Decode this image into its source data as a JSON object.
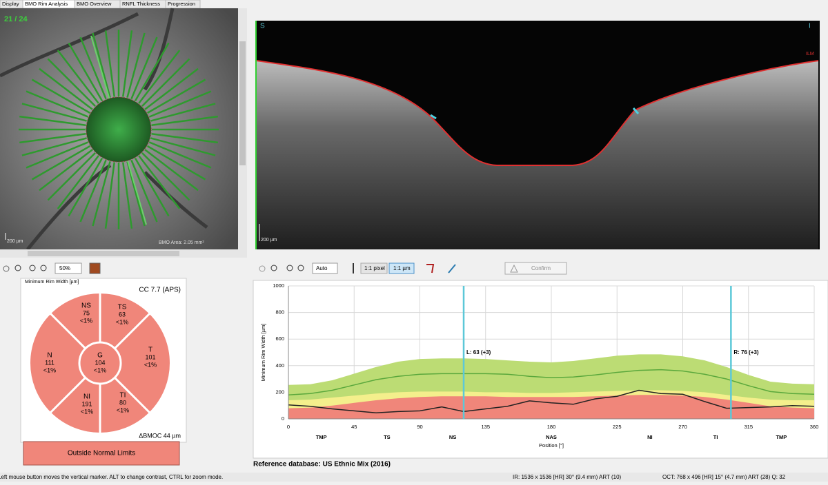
{
  "tabs": [
    "Display",
    "BMO Rim Analysis",
    "BMO Overview",
    "RNFL Thickness",
    "Progression"
  ],
  "fundus": {
    "scan": "21 / 24",
    "scale": "200 µm",
    "bmo_area": "BMO Area: 2.05 mm²"
  },
  "oct": {
    "left": "S",
    "right": "I",
    "layer": "ILM",
    "scale": "200 µm"
  },
  "toolbar_left": {
    "zoom": "50%"
  },
  "toolbar_right": {
    "mode": "Auto",
    "pixel": "1:1 pixel",
    "micron": "1:1 µm",
    "confirm": "Confirm"
  },
  "sector_panel": {
    "title": "Minimum Rim Width [µm]",
    "cc": "CC 7.7 (APS)",
    "sectors": [
      {
        "code": "NS",
        "value": 75,
        "pct": "<1%"
      },
      {
        "code": "TS",
        "value": 63,
        "pct": "<1%"
      },
      {
        "code": "T",
        "value": 101,
        "pct": "<1%"
      },
      {
        "code": "TI",
        "value": 80,
        "pct": "<1%"
      },
      {
        "code": "NI",
        "value": 191,
        "pct": "<1%"
      },
      {
        "code": "N",
        "value": 111,
        "pct": "<1%"
      },
      {
        "code": "G",
        "value": 104,
        "pct": "<1%"
      }
    ],
    "bmoc": "ΔBMOC 44 µm",
    "classification": "Outside Normal Limits"
  },
  "chart_data": {
    "type": "line",
    "ylabel": "Minimum Rim Width [µm]",
    "xlabel": "Position [°]",
    "xlim": [
      0,
      360
    ],
    "xticks": [
      0,
      45,
      90,
      135,
      180,
      225,
      270,
      315,
      360
    ],
    "ylim": [
      0,
      1000
    ],
    "yticks": [
      0,
      200,
      400,
      600,
      800,
      1000
    ],
    "grid": true,
    "sector_ticks": [
      {
        "value": 22.5,
        "label": "TMP"
      },
      {
        "value": 67.5,
        "label": "TS"
      },
      {
        "value": 112.5,
        "label": "NS"
      },
      {
        "value": 180,
        "label": "NAS"
      },
      {
        "value": 247.5,
        "label": "NI"
      },
      {
        "value": 292.5,
        "label": "TI"
      },
      {
        "value": 337.5,
        "label": "TMP"
      }
    ],
    "x": [
      0,
      15,
      30,
      45,
      60,
      75,
      90,
      105,
      120,
      135,
      150,
      165,
      180,
      195,
      210,
      225,
      240,
      255,
      270,
      285,
      300,
      315,
      330,
      345,
      360
    ],
    "series": [
      {
        "color": "#bcdc74",
        "fill": true,
        "values": [
          255,
          260,
          290,
          340,
          390,
          430,
          450,
          455,
          455,
          450,
          440,
          430,
          425,
          435,
          455,
          475,
          485,
          485,
          470,
          440,
          390,
          330,
          280,
          265,
          260
        ]
      },
      {
        "color": "#f4ef8c",
        "fill": true,
        "values": [
          140,
          145,
          160,
          175,
          190,
          200,
          205,
          205,
          205,
          200,
          200,
          195,
          195,
          200,
          205,
          210,
          215,
          215,
          210,
          200,
          180,
          160,
          145,
          140,
          140
        ]
      },
      {
        "color": "#f0867a",
        "fill": true,
        "values": [
          80,
          85,
          100,
          120,
          140,
          155,
          165,
          170,
          170,
          170,
          165,
          165,
          165,
          165,
          170,
          175,
          180,
          180,
          175,
          165,
          145,
          120,
          95,
          85,
          80
        ]
      },
      {
        "color": "#5aa83c",
        "fill": false,
        "values": [
          180,
          190,
          215,
          255,
          295,
          320,
          335,
          340,
          340,
          340,
          335,
          320,
          310,
          315,
          330,
          350,
          365,
          370,
          360,
          335,
          300,
          250,
          205,
          190,
          185
        ]
      },
      {
        "color": "#222222",
        "fill": false,
        "values": [
          105,
          95,
          75,
          60,
          45,
          55,
          60,
          90,
          55,
          75,
          95,
          135,
          120,
          110,
          150,
          170,
          215,
          190,
          185,
          130,
          80,
          85,
          90,
          100,
          95
        ]
      }
    ],
    "markers": [
      {
        "x": 120,
        "label": "L: 63 (+3)"
      },
      {
        "x": 303,
        "label": "R: 76 (+3)"
      }
    ],
    "marker_color": "#5cc8d8"
  },
  "reference": "Reference database: US Ethnic Mix (2016)",
  "status": {
    "hint": "Left mouse button moves the vertical marker. ALT to change contrast, CTRL for zoom mode.",
    "ir": "IR: 1536 x 1536 [HR] 30° (9.4 mm) ART (10)",
    "oct": "OCT: 768 x 496 [HR] 15° (4.7 mm) ART (28) Q: 32"
  }
}
